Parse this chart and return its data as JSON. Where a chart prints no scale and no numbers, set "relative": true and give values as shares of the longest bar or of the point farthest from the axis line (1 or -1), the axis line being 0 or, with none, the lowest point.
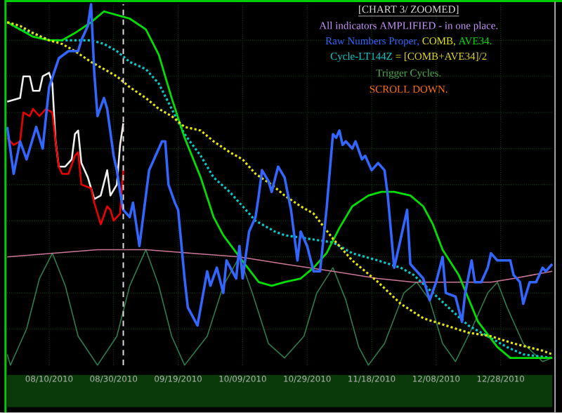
{
  "chart_data": {
    "type": "line",
    "title": "[CHART 3/ ZOOMED]",
    "subtitle": "All indicators AMPLIFIED - in one place.",
    "annotations": [
      ",",
      ",",
      ".",
      "= [COMB+AVE34]/2",
      "Trigger Cycles.",
      "SCROLL DOWN."
    ],
    "relative": true,
    "grid": true,
    "xlim": [
      "2010-07-28",
      "2011-01-13"
    ],
    "xticks": [
      {
        "value": "2010-08-10",
        "label": "08/10/2010"
      },
      {
        "value": "2010-08-30",
        "label": "08/30/2010"
      },
      {
        "value": "2010-09-19",
        "label": "09/19/2010"
      },
      {
        "value": "2010-10-09",
        "label": "10/09/2010"
      },
      {
        "value": "2010-10-29",
        "label": "10/29/2010"
      },
      {
        "value": "2010-11-18",
        "label": "11/18/2010"
      },
      {
        "value": "2010-12-08",
        "label": "12/08/2010"
      },
      {
        "value": "2010-12-28",
        "label": "12/28/2010"
      }
    ],
    "ref_lines": [
      {
        "axis": "x",
        "value": "2010-09-02",
        "color": "#dddddd",
        "line_style": "dashed"
      }
    ],
    "series": [
      {
        "name": "Raw Numbers Proper",
        "color": "#3366ff",
        "line_style": "solid",
        "x": [
          "2010-07-28",
          "2010-07-30",
          "2010-08-01",
          "2010-08-03",
          "2010-08-06",
          "2010-08-08",
          "2010-08-10",
          "2010-08-13",
          "2010-08-16",
          "2010-08-19",
          "2010-08-20",
          "2010-08-22",
          "2010-08-23",
          "2010-08-24",
          "2010-08-25",
          "2010-08-27",
          "2010-08-28",
          "2010-08-30",
          "2010-08-31",
          "2010-09-01",
          "2010-09-02",
          "2010-09-04",
          "2010-09-05",
          "2010-09-07",
          "2010-09-09",
          "2010-09-10",
          "2010-09-12",
          "2010-09-14",
          "2010-09-15",
          "2010-09-16",
          "2010-09-18",
          "2010-09-19",
          "2010-09-21",
          "2010-09-22",
          "2010-09-25",
          "2010-09-28",
          "2010-09-29",
          "2010-10-01",
          "2010-10-03",
          "2010-10-04",
          "2010-10-07",
          "2010-10-08",
          "2010-10-09",
          "2010-10-11",
          "2010-10-13",
          "2010-10-14",
          "2010-10-15",
          "2010-10-17",
          "2010-10-18",
          "2010-10-20",
          "2010-10-22",
          "2010-10-24",
          "2010-10-26",
          "2010-10-27",
          "2010-10-29",
          "2010-10-31",
          "2010-11-02",
          "2010-11-04",
          "2010-11-06",
          "2010-11-07",
          "2010-11-08",
          "2010-11-09",
          "2010-11-10",
          "2010-11-12",
          "2010-11-13",
          "2010-11-15",
          "2010-11-16",
          "2010-11-18",
          "2010-11-20",
          "2010-11-22",
          "2010-11-23",
          "2010-11-25",
          "2010-11-27",
          "2010-11-29",
          "2010-11-30",
          "2010-12-02",
          "2010-12-04",
          "2010-12-06",
          "2010-12-08",
          "2010-12-10",
          "2010-12-11",
          "2010-12-14",
          "2010-12-16",
          "2010-12-17",
          "2010-12-19",
          "2010-12-20",
          "2010-12-22",
          "2010-12-24",
          "2010-12-25",
          "2010-12-27",
          "2010-12-31",
          "2011-01-01",
          "2011-01-03",
          "2011-01-04",
          "2011-01-06",
          "2011-01-08",
          "2011-01-10",
          "2011-01-11",
          "2011-01-13"
        ],
        "values": [
          0.66,
          0.53,
          0.62,
          0.57,
          0.66,
          0.6,
          0.77,
          0.85,
          0.87,
          0.87,
          0.9,
          0.94,
          1.0,
          0.81,
          0.69,
          0.74,
          0.71,
          0.58,
          0.54,
          0.48,
          0.43,
          0.41,
          0.45,
          0.33,
          0.47,
          0.54,
          0.58,
          0.62,
          0.62,
          0.5,
          0.45,
          0.43,
          0.24,
          0.16,
          0.11,
          0.26,
          0.22,
          0.27,
          0.2,
          0.29,
          0.24,
          0.33,
          0.24,
          0.37,
          0.41,
          0.47,
          0.54,
          0.51,
          0.48,
          0.55,
          0.52,
          0.43,
          0.29,
          0.37,
          0.33,
          0.26,
          0.26,
          0.43,
          0.64,
          0.63,
          0.65,
          0.61,
          0.62,
          0.6,
          0.62,
          0.57,
          0.58,
          0.54,
          0.56,
          0.54,
          0.47,
          0.27,
          0.35,
          0.43,
          0.28,
          0.26,
          0.24,
          0.18,
          0.23,
          0.3,
          0.2,
          0.19,
          0.12,
          0.2,
          0.29,
          0.23,
          0.23,
          0.27,
          0.31,
          0.29,
          0.29,
          0.25,
          0.23,
          0.17,
          0.23,
          0.23,
          0.27,
          0.26,
          0.28
        ]
      },
      {
        "name": "COMB",
        "color": "#e6e600",
        "line_style": "dotted",
        "x": [
          "2010-07-28",
          "2010-08-01",
          "2010-08-05",
          "2010-08-10",
          "2010-08-14",
          "2010-08-18",
          "2010-08-23",
          "2010-08-27",
          "2010-08-31",
          "2010-09-04",
          "2010-09-09",
          "2010-09-13",
          "2010-09-17",
          "2010-09-21",
          "2010-09-26",
          "2010-09-30",
          "2010-10-05",
          "2010-10-09",
          "2010-10-13",
          "2010-10-18",
          "2010-10-22",
          "2010-10-27",
          "2010-10-31",
          "2010-11-06",
          "2010-11-12",
          "2010-11-20",
          "2010-11-27",
          "2010-12-04",
          "2010-12-11",
          "2010-12-18",
          "2010-12-25",
          "2011-01-01",
          "2011-01-10",
          "2011-01-13"
        ],
        "values": [
          0.95,
          0.94,
          0.92,
          0.9,
          0.89,
          0.87,
          0.84,
          0.82,
          0.8,
          0.77,
          0.74,
          0.71,
          0.69,
          0.66,
          0.65,
          0.62,
          0.59,
          0.57,
          0.53,
          0.5,
          0.47,
          0.44,
          0.42,
          0.35,
          0.29,
          0.23,
          0.17,
          0.13,
          0.11,
          0.09,
          0.08,
          0.06,
          0.04,
          0.03
        ]
      },
      {
        "name": "AVE34",
        "color": "#00e000",
        "line_style": "solid",
        "x": [
          "2010-07-28",
          "2010-08-01",
          "2010-08-05",
          "2010-08-10",
          "2010-08-14",
          "2010-08-18",
          "2010-08-23",
          "2010-08-27",
          "2010-08-31",
          "2010-09-04",
          "2010-09-09",
          "2010-09-13",
          "2010-09-17",
          "2010-09-21",
          "2010-09-26",
          "2010-09-30",
          "2010-10-03",
          "2010-10-08",
          "2010-10-14",
          "2010-10-18",
          "2010-10-22",
          "2010-10-27",
          "2010-10-31",
          "2010-11-04",
          "2010-11-08",
          "2010-11-12",
          "2010-11-17",
          "2010-11-21",
          "2010-11-25",
          "2010-11-30",
          "2010-12-04",
          "2010-12-07",
          "2010-12-10",
          "2010-12-15",
          "2010-12-21",
          "2010-12-27",
          "2010-12-31",
          "2011-01-05",
          "2011-01-13"
        ],
        "values": [
          0.95,
          0.93,
          0.91,
          0.9,
          0.9,
          0.92,
          0.95,
          0.98,
          0.97,
          0.96,
          0.93,
          0.86,
          0.74,
          0.63,
          0.52,
          0.41,
          0.36,
          0.3,
          0.23,
          0.22,
          0.23,
          0.24,
          0.27,
          0.31,
          0.38,
          0.44,
          0.47,
          0.48,
          0.48,
          0.47,
          0.44,
          0.39,
          0.32,
          0.25,
          0.12,
          0.05,
          0.02,
          0.02,
          0.02
        ]
      },
      {
        "name": "Cycle-LT144Z",
        "color": "#00cccc",
        "line_style": "dotted",
        "x": [
          "2010-07-28",
          "2010-08-01",
          "2010-08-05",
          "2010-08-10",
          "2010-08-14",
          "2010-08-18",
          "2010-08-23",
          "2010-08-27",
          "2010-08-31",
          "2010-09-04",
          "2010-09-09",
          "2010-09-13",
          "2010-09-17",
          "2010-09-21",
          "2010-09-26",
          "2010-09-30",
          "2010-10-05",
          "2010-10-09",
          "2010-10-13",
          "2010-10-19",
          "2010-10-22",
          "2010-11-06",
          "2010-11-12",
          "2010-11-20",
          "2010-11-27",
          "2010-12-01",
          "2010-12-07",
          "2010-12-13",
          "2010-12-18",
          "2010-12-24",
          "2010-12-30",
          "2011-01-04",
          "2011-01-13"
        ],
        "values": [
          0.95,
          0.93,
          0.92,
          0.9,
          0.9,
          0.9,
          0.9,
          0.89,
          0.87,
          0.84,
          0.82,
          0.78,
          0.71,
          0.64,
          0.58,
          0.52,
          0.48,
          0.44,
          0.4,
          0.37,
          0.36,
          0.34,
          0.31,
          0.29,
          0.27,
          0.25,
          0.2,
          0.15,
          0.11,
          0.08,
          0.05,
          0.03,
          0.02
        ]
      },
      {
        "color": "#ee0000",
        "line_style": "solid",
        "x": [
          "2010-07-28",
          "2010-07-30",
          "2010-08-01",
          "2010-08-02",
          "2010-08-04",
          "2010-08-05",
          "2010-08-07",
          "2010-08-09",
          "2010-08-11",
          "2010-08-12",
          "2010-08-13",
          "2010-08-14",
          "2010-08-16",
          "2010-08-18",
          "2010-08-19",
          "2010-08-20",
          "2010-08-23",
          "2010-08-24",
          "2010-08-26",
          "2010-08-28",
          "2010-08-29",
          "2010-08-30",
          "2010-09-01",
          "2010-09-02"
        ],
        "values": [
          0.63,
          0.61,
          0.62,
          0.7,
          0.69,
          0.71,
          0.69,
          0.71,
          0.7,
          0.62,
          0.55,
          0.53,
          0.53,
          0.58,
          0.59,
          0.5,
          0.49,
          0.45,
          0.39,
          0.44,
          0.43,
          0.4,
          0.42,
          0.54
        ]
      },
      {
        "color": "#f0f0f0",
        "line_style": "solid",
        "x": [
          "2010-07-28",
          "2010-08-01",
          "2010-08-02",
          "2010-08-04",
          "2010-08-05",
          "2010-08-07",
          "2010-08-08",
          "2010-08-10",
          "2010-08-11",
          "2010-08-12",
          "2010-08-13",
          "2010-08-15",
          "2010-08-17",
          "2010-08-18",
          "2010-08-19",
          "2010-08-20",
          "2010-08-22",
          "2010-08-24",
          "2010-08-26",
          "2010-08-28",
          "2010-08-29",
          "2010-08-31",
          "2010-09-01",
          "2010-09-02"
        ],
        "values": [
          0.73,
          0.74,
          0.8,
          0.8,
          0.76,
          0.76,
          0.8,
          0.81,
          0.78,
          0.62,
          0.55,
          0.55,
          0.57,
          0.64,
          0.65,
          0.56,
          0.52,
          0.46,
          0.47,
          0.54,
          0.47,
          0.5,
          0.61,
          0.67
        ]
      },
      {
        "color": "#cc7799",
        "line_style": "solid",
        "x": [
          "2010-07-28",
          "2010-08-11",
          "2010-08-25",
          "2010-09-09",
          "2010-09-23",
          "2010-10-08",
          "2010-10-22",
          "2010-11-06",
          "2010-11-20",
          "2010-12-01",
          "2010-12-11",
          "2010-12-25",
          "2011-01-01",
          "2011-01-13"
        ],
        "values": [
          0.3,
          0.31,
          0.32,
          0.32,
          0.31,
          0.3,
          0.28,
          0.26,
          0.24,
          0.23,
          0.23,
          0.23,
          0.24,
          0.26
        ]
      },
      {
        "color": "#2e7d4f",
        "line_style": "solid",
        "x": [
          "2010-07-28",
          "2010-07-29",
          "2010-08-03",
          "2010-08-07",
          "2010-08-11",
          "2010-08-15",
          "2010-08-19",
          "2010-08-25",
          "2010-08-31",
          "2010-09-04",
          "2010-09-09",
          "2010-09-13",
          "2010-09-17",
          "2010-09-21",
          "2010-09-28",
          "2010-10-03",
          "2010-10-08",
          "2010-10-12",
          "2010-10-17",
          "2010-10-22",
          "2010-10-28",
          "2010-11-01",
          "2010-11-06",
          "2010-11-10",
          "2010-11-14",
          "2010-11-17",
          "2010-11-22",
          "2010-11-28",
          "2010-12-02",
          "2010-12-06",
          "2010-12-10",
          "2010-12-14",
          "2010-12-19",
          "2010-12-24",
          "2010-12-27",
          "2010-12-30",
          "2011-01-04",
          "2011-01-10",
          "2011-01-13"
        ],
        "values": [
          0.03,
          0.0,
          0.1,
          0.24,
          0.31,
          0.22,
          0.08,
          0.0,
          0.08,
          0.22,
          0.32,
          0.22,
          0.08,
          0.0,
          0.08,
          0.22,
          0.3,
          0.2,
          0.06,
          0.02,
          0.08,
          0.2,
          0.27,
          0.18,
          0.05,
          0.0,
          0.06,
          0.2,
          0.23,
          0.18,
          0.06,
          0.01,
          0.1,
          0.2,
          0.23,
          0.16,
          0.06,
          0.01,
          0.02
        ]
      }
    ]
  }
}
